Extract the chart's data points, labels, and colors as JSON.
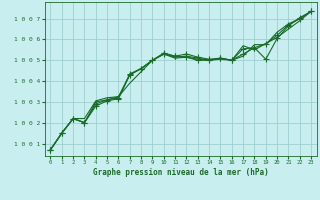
{
  "title": "Graphe pression niveau de la mer (hPa)",
  "bg_color": "#c8eef0",
  "grid_color": "#a0cece",
  "line_color": "#1a6b2a",
  "text_color": "#1a6b2a",
  "xlim": [
    -0.5,
    23.5
  ],
  "ylim": [
    1000.4,
    1007.8
  ],
  "yticks": [
    1001,
    1002,
    1003,
    1004,
    1005,
    1006,
    1007
  ],
  "xticks": [
    0,
    1,
    2,
    3,
    4,
    5,
    6,
    7,
    8,
    9,
    10,
    11,
    12,
    13,
    14,
    15,
    16,
    17,
    18,
    19,
    20,
    21,
    22,
    23
  ],
  "series": [
    {
      "y": [
        1000.7,
        1001.5,
        1002.2,
        1002.0,
        1002.9,
        1003.1,
        1003.2,
        1004.35,
        1004.6,
        1005.0,
        1005.35,
        1005.2,
        1005.3,
        1005.15,
        1005.05,
        1005.1,
        1005.0,
        1005.55,
        1005.6,
        1005.05,
        1006.05,
        1006.65,
        1007.05,
        1007.35
      ],
      "marker": true
    },
    {
      "y": [
        1000.7,
        1001.5,
        1002.2,
        1002.2,
        1003.05,
        1003.2,
        1003.25,
        1003.9,
        1004.45,
        1005.0,
        1005.3,
        1005.1,
        1005.15,
        1005.05,
        1005.0,
        1005.05,
        1005.0,
        1005.2,
        1005.75,
        1005.75,
        1006.35,
        1006.75,
        1007.0,
        1007.35
      ],
      "marker": false
    },
    {
      "y": [
        1000.7,
        1001.5,
        1002.2,
        1002.0,
        1003.0,
        1003.1,
        1003.25,
        1004.3,
        1004.6,
        1005.0,
        1005.3,
        1005.15,
        1005.2,
        1005.1,
        1005.0,
        1005.1,
        1005.0,
        1005.7,
        1005.5,
        1005.8,
        1006.1,
        1006.5,
        1006.9,
        1007.35
      ],
      "marker": false
    },
    {
      "y": [
        1000.7,
        1001.5,
        1002.2,
        1002.0,
        1002.8,
        1003.05,
        1003.15,
        1004.3,
        1004.6,
        1005.0,
        1005.3,
        1005.2,
        1005.15,
        1005.0,
        1005.0,
        1005.1,
        1005.0,
        1005.3,
        1005.6,
        1005.8,
        1006.2,
        1006.7,
        1007.0,
        1007.35
      ],
      "marker": true
    }
  ],
  "marker_style": "+",
  "marker_size": 4,
  "linewidth": 0.8
}
